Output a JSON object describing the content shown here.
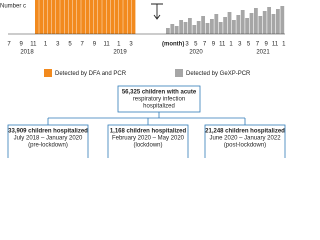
{
  "chart": {
    "y_label": "Number c",
    "x_label": "(month)",
    "tick_labels_pre": [
      "7",
      "9",
      "11",
      "1",
      "3",
      "5",
      "7",
      "9",
      "11",
      "1",
      "3"
    ],
    "tick_labels_post": [
      "3",
      "5",
      "7",
      "9",
      "11",
      "1",
      "3",
      "5",
      "7",
      "9",
      "11",
      "1"
    ],
    "years": [
      "2018",
      "2019",
      "2020",
      "2021"
    ],
    "legend": [
      "Detected by DFA and PCR",
      "Detected by GeXP-PCR"
    ]
  },
  "flowchart": {
    "root": [
      "56,325 children with acute",
      "respiratory infection",
      "hospitalized"
    ],
    "children": [
      [
        "33,909 children hospitalized",
        "July 2018 – January 2020",
        "(pre-lockdown)"
      ],
      [
        "1,168 children hospitalized",
        "February 2020 – May 2020",
        "(lockdown)"
      ],
      [
        "21,248 children hospitalized",
        "June 2020 – January 2022",
        "(post-lockdown)"
      ]
    ]
  }
}
